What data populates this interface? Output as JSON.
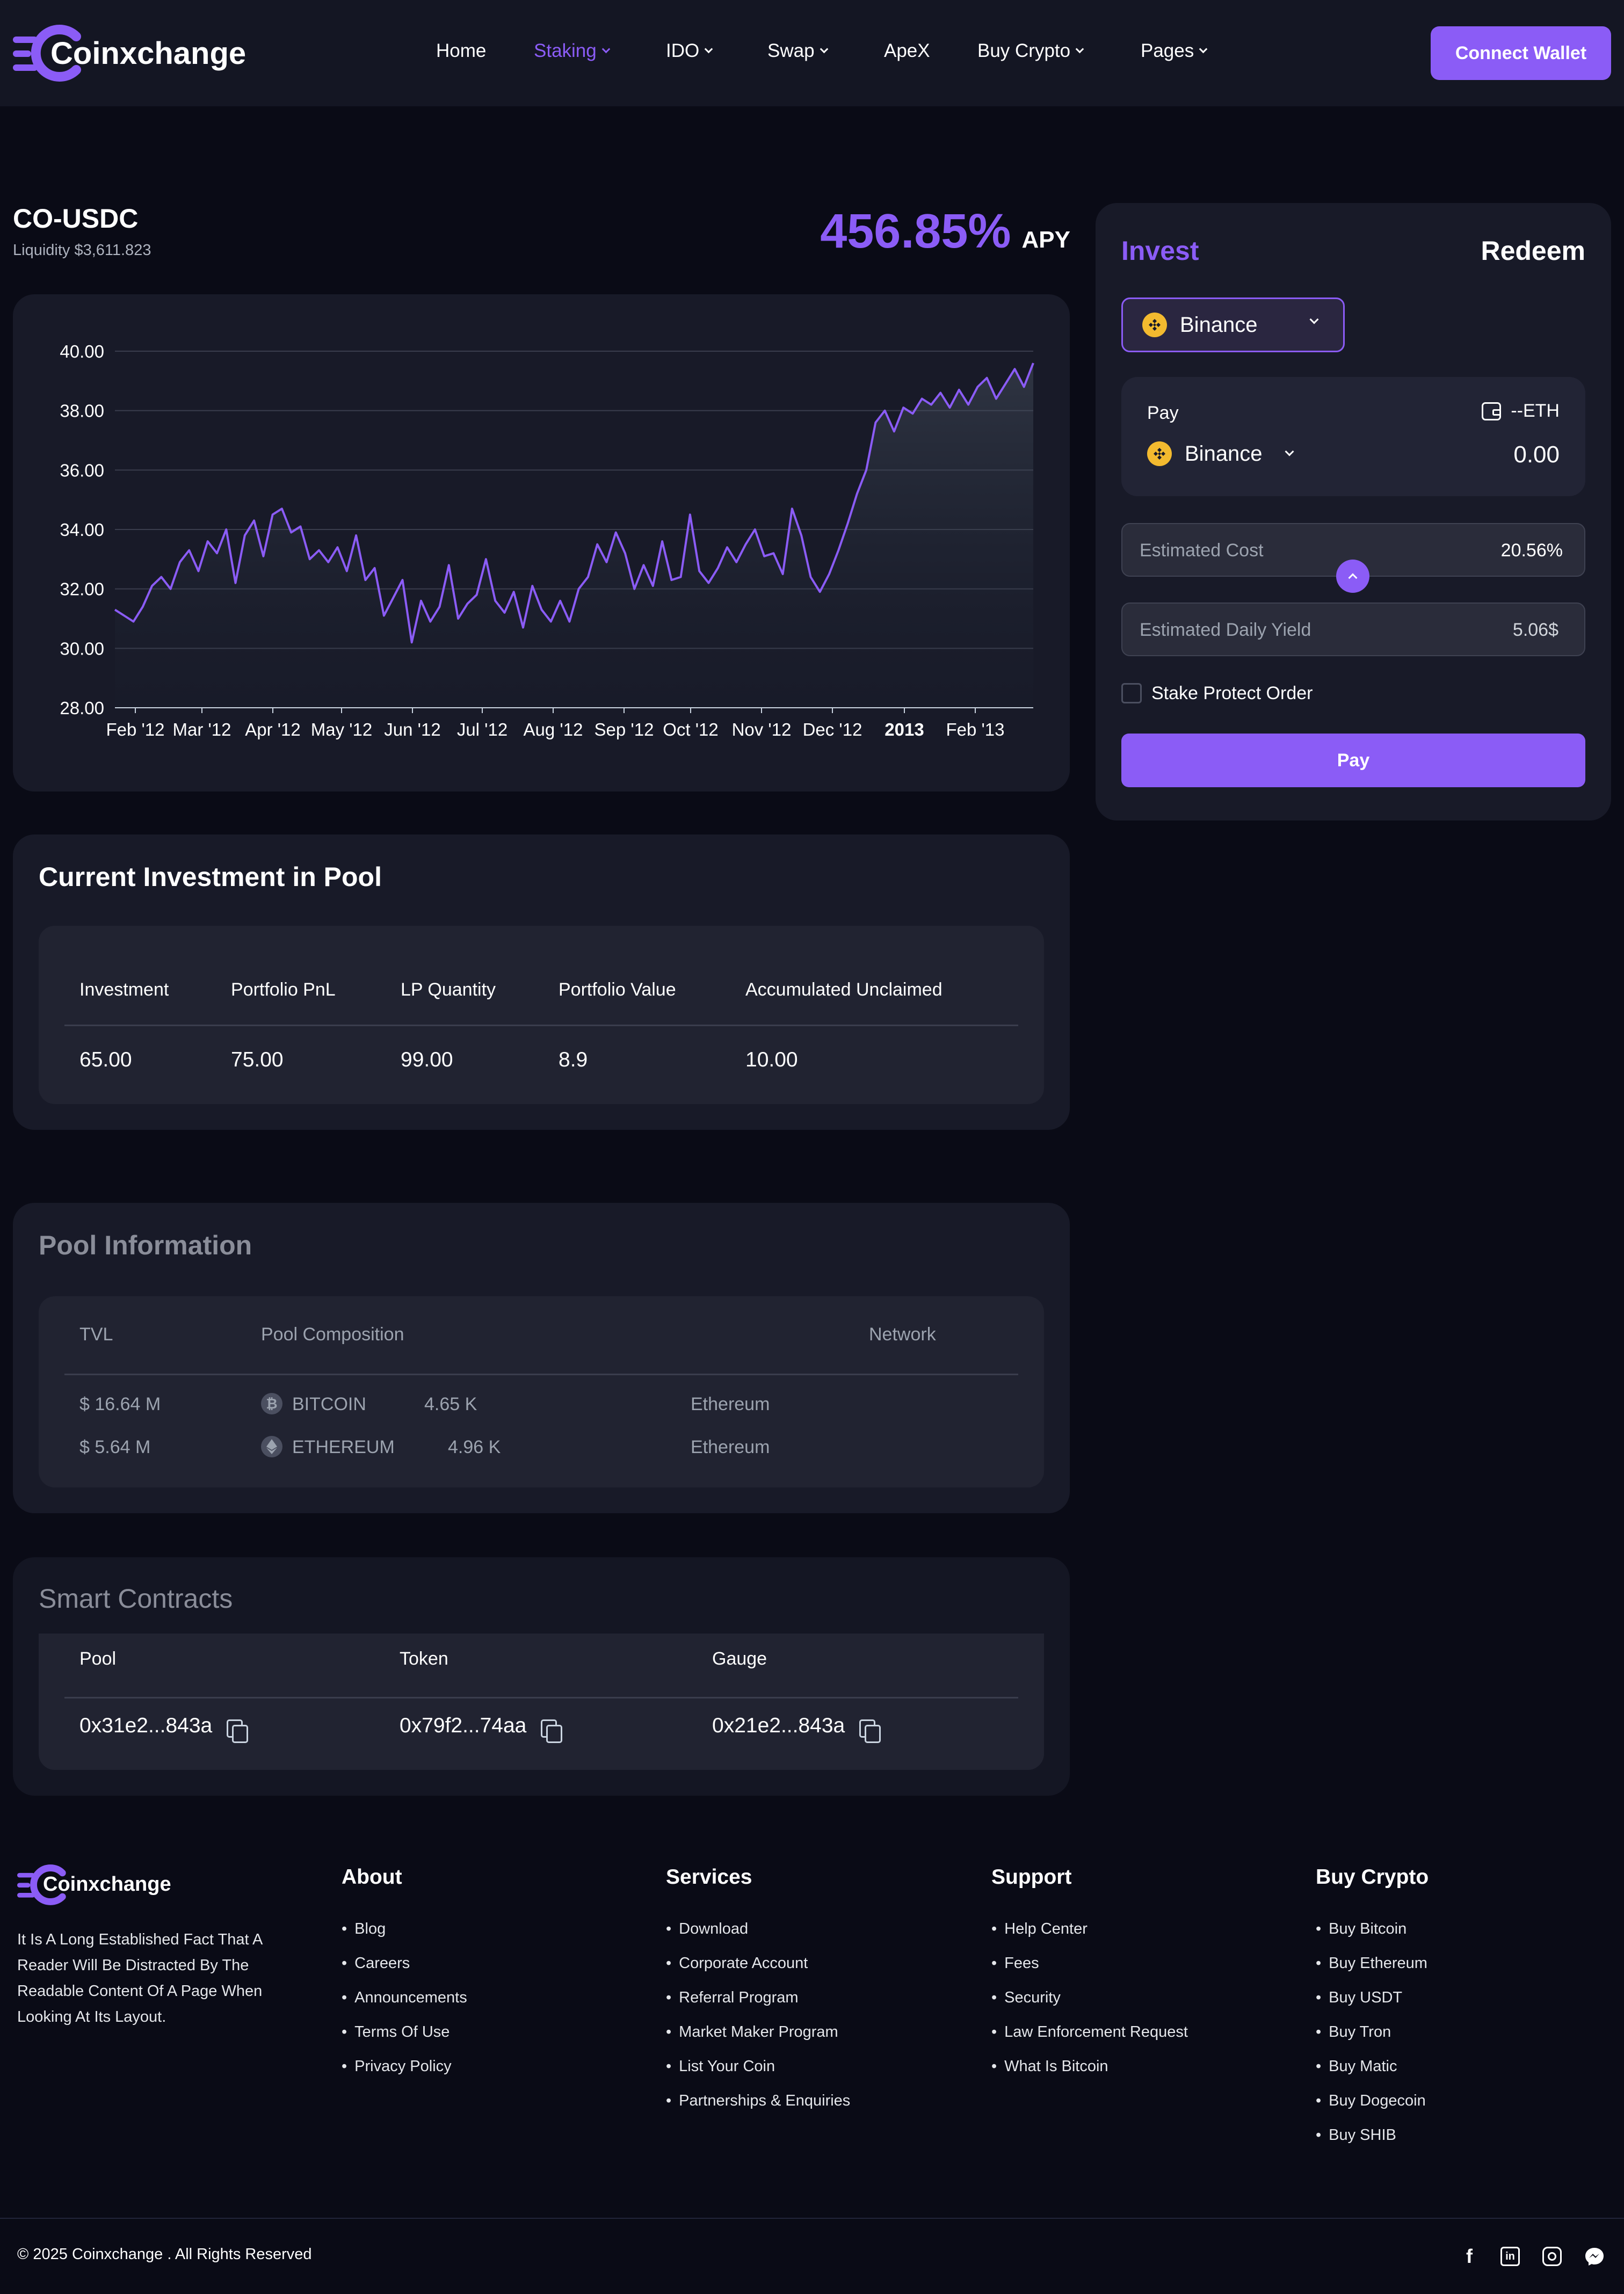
{
  "brand": {
    "name": "Coinxchange"
  },
  "nav": {
    "items": [
      {
        "label": "Home",
        "dropdown": false,
        "active": false
      },
      {
        "label": "Staking",
        "dropdown": true,
        "active": true
      },
      {
        "label": "IDO",
        "dropdown": true,
        "active": false
      },
      {
        "label": "Swap",
        "dropdown": true,
        "active": false
      },
      {
        "label": "ApeX",
        "dropdown": false,
        "active": false
      },
      {
        "label": "Buy Crypto",
        "dropdown": true,
        "active": false
      },
      {
        "label": "Pages",
        "dropdown": true,
        "active": false
      }
    ],
    "connect_label": "Connect Wallet"
  },
  "pair": {
    "name": "CO-USDC",
    "liquidity": "Liquidity $3,611.823",
    "apy_value": "456.85%",
    "apy_label": "APY"
  },
  "chart_data": {
    "type": "area",
    "x_ticks": [
      "Feb '12",
      "Mar '12",
      "Apr '12",
      "May '12",
      "Jun '12",
      "Jul '12",
      "Aug '12",
      "Sep '12",
      "Oct '12",
      "Nov '12",
      "Dec '12",
      "2013",
      "Feb '13"
    ],
    "y_ticks": [
      "40.00",
      "38.00",
      "36.00",
      "34.00",
      "32.00",
      "30.00",
      "28.00"
    ],
    "ylim": [
      28,
      40
    ],
    "grid": true,
    "series_color": "#8b5cf6",
    "y": [
      31.3,
      31.1,
      30.9,
      31.4,
      32.1,
      32.4,
      32.0,
      32.9,
      33.3,
      32.6,
      33.6,
      33.2,
      34.0,
      32.2,
      33.8,
      34.3,
      33.1,
      34.5,
      34.7,
      33.9,
      34.1,
      33.0,
      33.3,
      32.9,
      33.4,
      32.6,
      33.8,
      32.3,
      32.7,
      31.1,
      31.7,
      32.3,
      30.2,
      31.6,
      30.9,
      31.4,
      32.8,
      31.0,
      31.5,
      31.8,
      33.0,
      31.6,
      31.2,
      31.9,
      30.7,
      32.1,
      31.3,
      30.9,
      31.6,
      30.9,
      32.0,
      32.4,
      33.5,
      32.9,
      33.9,
      33.2,
      32.0,
      32.8,
      32.1,
      33.6,
      32.3,
      32.4,
      34.5,
      32.6,
      32.2,
      32.7,
      33.4,
      32.9,
      33.5,
      34.0,
      33.1,
      33.2,
      32.5,
      34.7,
      33.8,
      32.4,
      31.9,
      32.5,
      33.3,
      34.2,
      35.2,
      36.0,
      37.6,
      38.0,
      37.3,
      38.1,
      37.9,
      38.4,
      38.2,
      38.6,
      38.1,
      38.7,
      38.2,
      38.8,
      39.1,
      38.4,
      38.9,
      39.4,
      38.8,
      39.6
    ],
    "x_ticks_bold": [
      "2013"
    ]
  },
  "invest_panel": {
    "tab_invest": "Invest",
    "tab_redeem": "Redeem",
    "network_select": "Binance",
    "pay_label": "Pay",
    "balance": "--ETH",
    "token_select": "Binance",
    "amount": "0.00",
    "estimated_cost_label": "Estimated Cost",
    "estimated_cost_value": "20.56%",
    "daily_yield_label": "Estimated Daily Yield",
    "daily_yield_value": "5.06$",
    "stake_protect_label": "Stake Protect Order",
    "pay_button": "Pay"
  },
  "investment": {
    "title": "Current Investment in Pool",
    "headers": [
      "Investment",
      "Portfolio PnL",
      "LP Quantity",
      "Portfolio Value",
      "Accumulated Unclaimed"
    ],
    "values": [
      "65.00",
      "75.00",
      "99.00",
      "8.9",
      "10.00"
    ]
  },
  "pool_info": {
    "title": "Pool Information",
    "headers": [
      "TVL",
      "Pool Composition",
      "Network"
    ],
    "rows": [
      {
        "tvl": "$ 16.64 M",
        "coin": "BITCOIN",
        "amount": "4.65 K",
        "network": "Ethereum",
        "icon": "bitcoin-icon"
      },
      {
        "tvl": "$ 5.64 M",
        "coin": "ETHEREUM",
        "amount": "4.96 K",
        "network": "Ethereum",
        "icon": "ethereum-icon"
      }
    ]
  },
  "contracts": {
    "title": "Smart Contracts",
    "headers": [
      "Pool",
      "Token",
      "Gauge"
    ],
    "values": [
      "0x31e2...843a",
      "0x79f2...74aa",
      "0x21e2...843a"
    ]
  },
  "footer": {
    "description": "It Is A Long Established Fact That A Reader Will Be Distracted By The Readable Content Of A Page When Looking At Its Layout.",
    "columns": [
      {
        "title": "About",
        "items": [
          "Blog",
          "Careers",
          "Announcements",
          "Terms Of Use",
          "Privacy Policy"
        ]
      },
      {
        "title": "Services",
        "items": [
          "Download",
          "Corporate Account",
          "Referral Program",
          "Market Maker Program",
          "List Your Coin",
          "Partnerships & Enquiries"
        ]
      },
      {
        "title": "Support",
        "items": [
          "Help Center",
          "Fees",
          "Security",
          "Law Enforcement Request",
          "What Is Bitcoin"
        ]
      },
      {
        "title": "Buy Crypto",
        "items": [
          "Buy Bitcoin",
          "Buy Ethereum",
          "Buy USDT",
          "Buy Tron",
          "Buy Matic",
          "Buy Dogecoin",
          "Buy SHIB"
        ]
      }
    ],
    "copyright": "© 2025 Coinxchange . All Rights Reserved",
    "social": [
      "facebook-icon",
      "linkedin-icon",
      "instagram-icon",
      "messenger-icon"
    ]
  },
  "colors": {
    "accent": "#8b5cf6",
    "background": "#0a0b16",
    "card": "#181a28",
    "binance": "#f3ba2f"
  }
}
